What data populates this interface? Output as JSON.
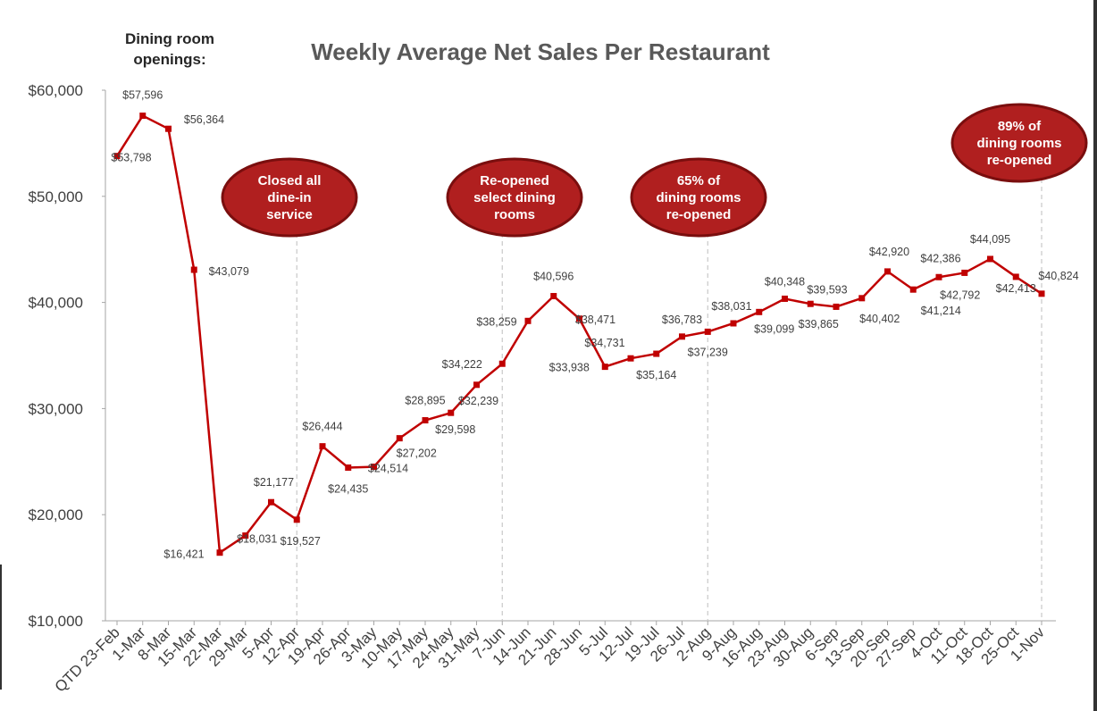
{
  "chart_data": {
    "type": "line",
    "title": "Weekly Average Net Sales Per Restaurant",
    "side_label": "Dining room openings:",
    "ylim": [
      10000,
      60000
    ],
    "yticks": [
      "$10,000",
      "$20,000",
      "$30,000",
      "$40,000",
      "$50,000",
      "$60,000"
    ],
    "ytick_values": [
      10000,
      20000,
      30000,
      40000,
      50000,
      60000
    ],
    "categories": [
      "QTD 23-Feb",
      "1-Mar",
      "8-Mar",
      "15-Mar",
      "22-Mar",
      "29-Mar",
      "5-Apr",
      "12-Apr",
      "19-Apr",
      "26-Apr",
      "3-May",
      "10-May",
      "17-May",
      "24-May",
      "31-May",
      "7-Jun",
      "14-Jun",
      "21-Jun",
      "28-Jun",
      "5-Jul",
      "12-Jul",
      "19-Jul",
      "26-Jul",
      "2-Aug",
      "9-Aug",
      "16-Aug",
      "23-Aug",
      "30-Aug",
      "6-Sep",
      "13-Sep",
      "20-Sep",
      "27-Sep",
      "4-Oct",
      "11-Oct",
      "18-Oct",
      "25-Oct",
      "1-Nov"
    ],
    "series": [
      {
        "values": [
          53798,
          57596,
          56364,
          43079,
          16421,
          18031,
          21177,
          19527,
          26444,
          24435,
          24514,
          27202,
          28895,
          29598,
          32239,
          34222,
          38259,
          40596,
          38471,
          33938,
          34731,
          35164,
          36783,
          37239,
          38031,
          39099,
          40348,
          39865,
          39593,
          40402,
          42920,
          41214,
          42386,
          42792,
          44095,
          42413,
          40824
        ]
      }
    ],
    "data_labels": [
      "$53,798",
      "$57,596",
      "$56,364",
      "$43,079",
      "$16,421",
      "$18,031",
      "$21,177",
      "$19,527",
      "$26,444",
      "$24,435",
      "$24,514",
      "$27,202",
      "$28,895",
      "$29,598",
      "$32,239",
      "$34,222",
      "$38,259",
      "$40,596",
      "$38,471",
      "$33,938",
      "$34,731",
      "$35,164",
      "$36,783",
      "$37,239",
      "$38,031",
      "$39,099",
      "$40,348",
      "$39,865",
      "$39,593",
      "$40,402",
      "$42,920",
      "$41,214",
      "$42,386",
      "$42,792",
      "$44,095",
      "$42,413",
      "$40,824"
    ],
    "annotations": [
      {
        "text": [
          "Closed all",
          "dine-in",
          "service"
        ],
        "category": "12-Apr"
      },
      {
        "text": [
          "Re-opened",
          "select dining",
          "rooms"
        ],
        "category": "7-Jun"
      },
      {
        "text": [
          "65% of",
          "dining rooms",
          "re-opened"
        ],
        "category": "2-Aug"
      },
      {
        "text": [
          "89% of",
          "dining rooms",
          "re-opened"
        ],
        "category": "1-Nov"
      }
    ],
    "colors": {
      "line": "#C00000",
      "bubble_fill": "#B01F1F",
      "bubble_stroke": "#7A0E0E",
      "title": "#595959",
      "text": "#404040"
    },
    "grid": false
  }
}
